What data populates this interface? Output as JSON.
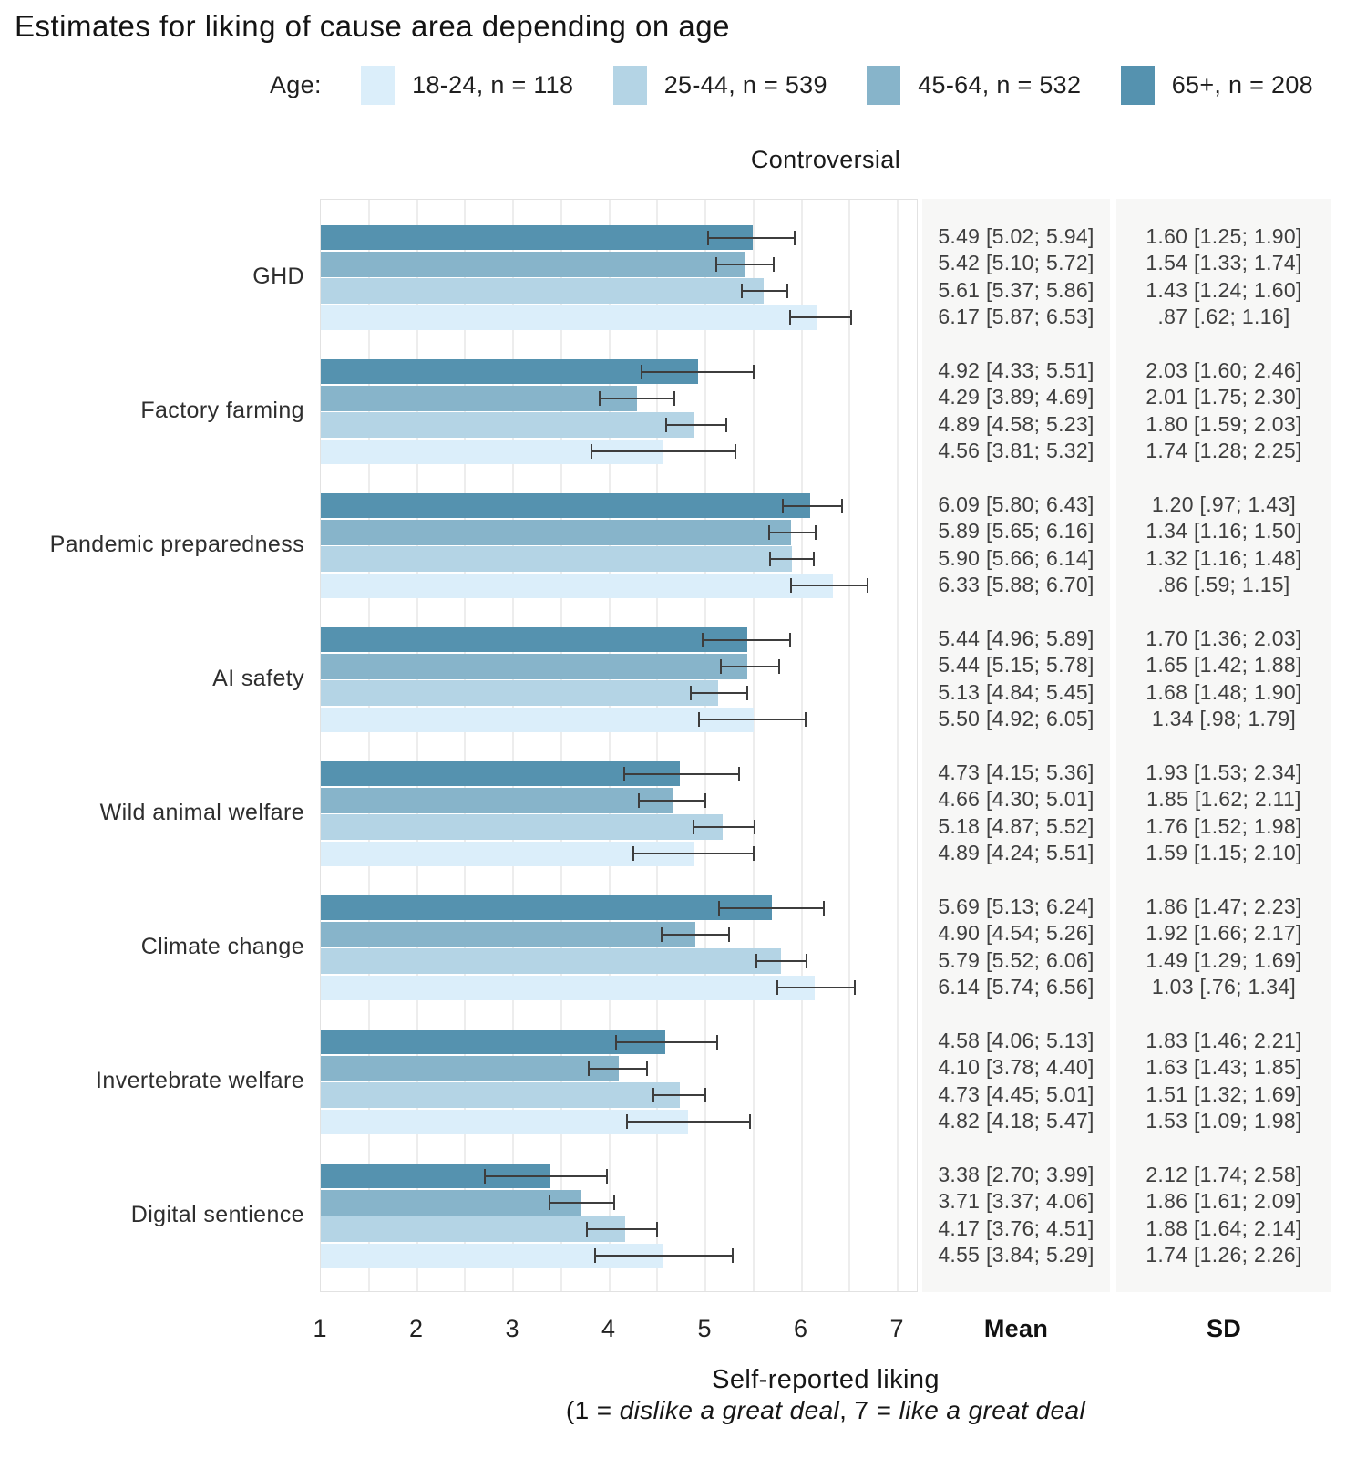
{
  "title": "Estimates for liking of cause area depending on age",
  "panel_title": "Controversial",
  "legend": {
    "label": "Age:",
    "groups": [
      {
        "age": "18-24",
        "label": "18-24, n = 118",
        "n": 118,
        "color": "#dbeefa"
      },
      {
        "age": "25-44",
        "label": "25-44, n = 539",
        "n": 539,
        "color": "#b4d4e5"
      },
      {
        "age": "45-64",
        "label": "45-64, n = 532",
        "n": 532,
        "color": "#87b4ca"
      },
      {
        "age": "65+",
        "label": "65+, n = 208",
        "n": 208,
        "color": "#5592af"
      }
    ]
  },
  "columns": {
    "mean": "Mean",
    "sd": "SD"
  },
  "x_axis": {
    "ticks": [
      "1",
      "2",
      "3",
      "4",
      "5",
      "6",
      "7"
    ],
    "title": "Self-reported liking",
    "subtitle_parts": [
      {
        "text": "(1 = ",
        "italic": false
      },
      {
        "text": "dislike a great deal",
        "italic": true
      },
      {
        "text": ", 7 = ",
        "italic": false
      },
      {
        "text": "like a great deal",
        "italic": true
      }
    ]
  },
  "chart_data": {
    "type": "bar",
    "orientation": "horizontal",
    "x_range": [
      1,
      7.22
    ],
    "grid": "minor lines every 0.5",
    "bar_order_top_to_bottom": [
      "65+",
      "45-64",
      "25-44",
      "18-24"
    ],
    "categories": [
      {
        "name": "GHD",
        "rows": [
          {
            "age": "65+",
            "mean": 5.49,
            "ci": [
              5.02,
              5.94
            ],
            "sd": 1.6,
            "sd_ci": [
              1.25,
              1.9
            ],
            "mean_label": "5.49 [5.02; 5.94]",
            "sd_label": "1.60 [1.25; 1.90]"
          },
          {
            "age": "45-64",
            "mean": 5.42,
            "ci": [
              5.1,
              5.72
            ],
            "sd": 1.54,
            "sd_ci": [
              1.33,
              1.74
            ],
            "mean_label": "5.42 [5.10; 5.72]",
            "sd_label": "1.54 [1.33; 1.74]"
          },
          {
            "age": "25-44",
            "mean": 5.61,
            "ci": [
              5.37,
              5.86
            ],
            "sd": 1.43,
            "sd_ci": [
              1.24,
              1.6
            ],
            "mean_label": "5.61 [5.37; 5.86]",
            "sd_label": "1.43 [1.24; 1.60]"
          },
          {
            "age": "18-24",
            "mean": 6.17,
            "ci": [
              5.87,
              6.53
            ],
            "sd": 0.87,
            "sd_ci": [
              0.62,
              1.16
            ],
            "mean_label": "6.17 [5.87; 6.53]",
            "sd_label": ".87 [.62; 1.16]"
          }
        ]
      },
      {
        "name": "Factory farming",
        "rows": [
          {
            "age": "65+",
            "mean": 4.92,
            "ci": [
              4.33,
              5.51
            ],
            "sd": 2.03,
            "sd_ci": [
              1.6,
              2.46
            ],
            "mean_label": "4.92 [4.33; 5.51]",
            "sd_label": "2.03 [1.60; 2.46]"
          },
          {
            "age": "45-64",
            "mean": 4.29,
            "ci": [
              3.89,
              4.69
            ],
            "sd": 2.01,
            "sd_ci": [
              1.75,
              2.3
            ],
            "mean_label": "4.29 [3.89; 4.69]",
            "sd_label": "2.01 [1.75; 2.30]"
          },
          {
            "age": "25-44",
            "mean": 4.89,
            "ci": [
              4.58,
              5.23
            ],
            "sd": 1.8,
            "sd_ci": [
              1.59,
              2.03
            ],
            "mean_label": "4.89 [4.58; 5.23]",
            "sd_label": "1.80 [1.59; 2.03]"
          },
          {
            "age": "18-24",
            "mean": 4.56,
            "ci": [
              3.81,
              5.32
            ],
            "sd": 1.74,
            "sd_ci": [
              1.28,
              2.25
            ],
            "mean_label": "4.56 [3.81; 5.32]",
            "sd_label": "1.74 [1.28; 2.25]"
          }
        ]
      },
      {
        "name": "Pandemic preparedness",
        "rows": [
          {
            "age": "65+",
            "mean": 6.09,
            "ci": [
              5.8,
              6.43
            ],
            "sd": 1.2,
            "sd_ci": [
              0.97,
              1.43
            ],
            "mean_label": "6.09 [5.80; 6.43]",
            "sd_label": "1.20 [.97; 1.43]"
          },
          {
            "age": "45-64",
            "mean": 5.89,
            "ci": [
              5.65,
              6.16
            ],
            "sd": 1.34,
            "sd_ci": [
              1.16,
              1.5
            ],
            "mean_label": "5.89 [5.65; 6.16]",
            "sd_label": "1.34 [1.16; 1.50]"
          },
          {
            "age": "25-44",
            "mean": 5.9,
            "ci": [
              5.66,
              6.14
            ],
            "sd": 1.32,
            "sd_ci": [
              1.16,
              1.48
            ],
            "mean_label": "5.90 [5.66; 6.14]",
            "sd_label": "1.32 [1.16; 1.48]"
          },
          {
            "age": "18-24",
            "mean": 6.33,
            "ci": [
              5.88,
              6.7
            ],
            "sd": 0.86,
            "sd_ci": [
              0.59,
              1.15
            ],
            "mean_label": "6.33 [5.88; 6.70]",
            "sd_label": ".86 [.59; 1.15]"
          }
        ]
      },
      {
        "name": "AI safety",
        "rows": [
          {
            "age": "65+",
            "mean": 5.44,
            "ci": [
              4.96,
              5.89
            ],
            "sd": 1.7,
            "sd_ci": [
              1.36,
              2.03
            ],
            "mean_label": "5.44 [4.96; 5.89]",
            "sd_label": "1.70 [1.36; 2.03]"
          },
          {
            "age": "45-64",
            "mean": 5.44,
            "ci": [
              5.15,
              5.78
            ],
            "sd": 1.65,
            "sd_ci": [
              1.42,
              1.88
            ],
            "mean_label": "5.44 [5.15; 5.78]",
            "sd_label": "1.65 [1.42; 1.88]"
          },
          {
            "age": "25-44",
            "mean": 5.13,
            "ci": [
              4.84,
              5.45
            ],
            "sd": 1.68,
            "sd_ci": [
              1.48,
              1.9
            ],
            "mean_label": "5.13 [4.84; 5.45]",
            "sd_label": "1.68 [1.48; 1.90]"
          },
          {
            "age": "18-24",
            "mean": 5.5,
            "ci": [
              4.92,
              6.05
            ],
            "sd": 1.34,
            "sd_ci": [
              0.98,
              1.79
            ],
            "mean_label": "5.50 [4.92; 6.05]",
            "sd_label": "1.34 [.98; 1.79]"
          }
        ]
      },
      {
        "name": "Wild animal welfare",
        "rows": [
          {
            "age": "65+",
            "mean": 4.73,
            "ci": [
              4.15,
              5.36
            ],
            "sd": 1.93,
            "sd_ci": [
              1.53,
              2.34
            ],
            "mean_label": "4.73 [4.15; 5.36]",
            "sd_label": "1.93 [1.53; 2.34]"
          },
          {
            "age": "45-64",
            "mean": 4.66,
            "ci": [
              4.3,
              5.01
            ],
            "sd": 1.85,
            "sd_ci": [
              1.62,
              2.11
            ],
            "mean_label": "4.66 [4.30; 5.01]",
            "sd_label": "1.85 [1.62; 2.11]"
          },
          {
            "age": "25-44",
            "mean": 5.18,
            "ci": [
              4.87,
              5.52
            ],
            "sd": 1.76,
            "sd_ci": [
              1.52,
              1.98
            ],
            "mean_label": "5.18 [4.87; 5.52]",
            "sd_label": "1.76 [1.52; 1.98]"
          },
          {
            "age": "18-24",
            "mean": 4.89,
            "ci": [
              4.24,
              5.51
            ],
            "sd": 1.59,
            "sd_ci": [
              1.15,
              2.1
            ],
            "mean_label": "4.89 [4.24; 5.51]",
            "sd_label": "1.59 [1.15; 2.10]"
          }
        ]
      },
      {
        "name": "Climate change",
        "rows": [
          {
            "age": "65+",
            "mean": 5.69,
            "ci": [
              5.13,
              6.24
            ],
            "sd": 1.86,
            "sd_ci": [
              1.47,
              2.23
            ],
            "mean_label": "5.69 [5.13; 6.24]",
            "sd_label": "1.86 [1.47; 2.23]"
          },
          {
            "age": "45-64",
            "mean": 4.9,
            "ci": [
              4.54,
              5.26
            ],
            "sd": 1.92,
            "sd_ci": [
              1.66,
              2.17
            ],
            "mean_label": "4.90 [4.54; 5.26]",
            "sd_label": "1.92 [1.66; 2.17]"
          },
          {
            "age": "25-44",
            "mean": 5.79,
            "ci": [
              5.52,
              6.06
            ],
            "sd": 1.49,
            "sd_ci": [
              1.29,
              1.69
            ],
            "mean_label": "5.79 [5.52; 6.06]",
            "sd_label": "1.49 [1.29; 1.69]"
          },
          {
            "age": "18-24",
            "mean": 6.14,
            "ci": [
              5.74,
              6.56
            ],
            "sd": 1.03,
            "sd_ci": [
              0.76,
              1.34
            ],
            "mean_label": "6.14 [5.74; 6.56]",
            "sd_label": "1.03 [.76; 1.34]"
          }
        ]
      },
      {
        "name": "Invertebrate welfare",
        "rows": [
          {
            "age": "65+",
            "mean": 4.58,
            "ci": [
              4.06,
              5.13
            ],
            "sd": 1.83,
            "sd_ci": [
              1.46,
              2.21
            ],
            "mean_label": "4.58 [4.06; 5.13]",
            "sd_label": "1.83 [1.46; 2.21]"
          },
          {
            "age": "45-64",
            "mean": 4.1,
            "ci": [
              3.78,
              4.4
            ],
            "sd": 1.63,
            "sd_ci": [
              1.43,
              1.85
            ],
            "mean_label": "4.10 [3.78; 4.40]",
            "sd_label": "1.63 [1.43; 1.85]"
          },
          {
            "age": "25-44",
            "mean": 4.73,
            "ci": [
              4.45,
              5.01
            ],
            "sd": 1.51,
            "sd_ci": [
              1.32,
              1.69
            ],
            "mean_label": "4.73 [4.45; 5.01]",
            "sd_label": "1.51 [1.32; 1.69]"
          },
          {
            "age": "18-24",
            "mean": 4.82,
            "ci": [
              4.18,
              5.47
            ],
            "sd": 1.53,
            "sd_ci": [
              1.09,
              1.98
            ],
            "mean_label": "4.82 [4.18; 5.47]",
            "sd_label": "1.53 [1.09; 1.98]"
          }
        ]
      },
      {
        "name": "Digital sentience",
        "rows": [
          {
            "age": "65+",
            "mean": 3.38,
            "ci": [
              2.7,
              3.99
            ],
            "sd": 2.12,
            "sd_ci": [
              1.74,
              2.58
            ],
            "mean_label": "3.38 [2.70; 3.99]",
            "sd_label": "2.12 [1.74; 2.58]"
          },
          {
            "age": "45-64",
            "mean": 3.71,
            "ci": [
              3.37,
              4.06
            ],
            "sd": 1.86,
            "sd_ci": [
              1.61,
              2.09
            ],
            "mean_label": "3.71 [3.37; 4.06]",
            "sd_label": "1.86 [1.61; 2.09]"
          },
          {
            "age": "25-44",
            "mean": 4.17,
            "ci": [
              3.76,
              4.51
            ],
            "sd": 1.88,
            "sd_ci": [
              1.64,
              2.14
            ],
            "mean_label": "4.17 [3.76; 4.51]",
            "sd_label": "1.88 [1.64; 2.14]"
          },
          {
            "age": "18-24",
            "mean": 4.55,
            "ci": [
              3.84,
              5.29
            ],
            "sd": 1.74,
            "sd_ci": [
              1.26,
              2.26
            ],
            "mean_label": "4.55 [3.84; 5.29]",
            "sd_label": "1.74 [1.26; 2.26]"
          }
        ]
      }
    ]
  }
}
